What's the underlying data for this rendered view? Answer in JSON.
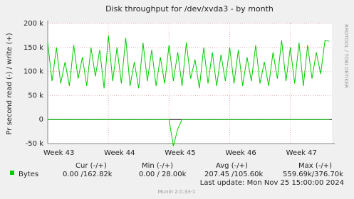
{
  "chart_data": {
    "type": "line",
    "title": "Disk throughput for /dev/xvda3 - by month",
    "y_label": "Pr second read (-) / write (+)",
    "side_text": "RRDTOOL / TOBI OETIKER",
    "x": [
      0,
      0.5,
      1,
      1.5,
      2,
      2.5,
      3,
      3.5,
      4,
      4.5,
      5,
      5.5,
      6,
      6.5,
      7,
      7.5,
      8,
      8.5,
      9,
      9.5,
      10,
      10.5,
      11,
      11.5,
      12,
      12.5,
      13,
      13.5,
      14,
      14.5,
      15,
      15.5,
      16,
      16.5,
      17,
      17.5,
      18,
      18.5,
      19,
      19.5,
      20,
      20.5,
      21,
      21.5,
      22,
      22.5,
      23,
      23.5,
      24,
      24.5,
      25,
      25.5,
      26,
      26.5,
      27,
      27.5,
      28,
      28.5,
      29,
      29.5,
      30,
      30.5,
      31,
      31.5,
      32,
      32.5
    ],
    "series": [
      {
        "name": "Bytes",
        "color": "#00cc00",
        "values": [
          160000,
          80000,
          150000,
          75000,
          120000,
          70000,
          155000,
          85000,
          130000,
          70000,
          150000,
          90000,
          145000,
          65000,
          175000,
          80000,
          150000,
          75000,
          170000,
          70000,
          120000,
          65000,
          160000,
          80000,
          145000,
          70000,
          130000,
          75000,
          155000,
          80000,
          140000,
          70000,
          160000,
          85000,
          125000,
          65000,
          150000,
          75000,
          140000,
          70000,
          135000,
          80000,
          150000,
          75000,
          145000,
          70000,
          130000,
          80000,
          155000,
          75000,
          120000,
          70000,
          140000,
          85000,
          165000,
          80000,
          150000,
          75000,
          160000,
          70000,
          155000,
          85000,
          140000,
          95000,
          165000,
          162820
        ]
      },
      {
        "color": "#00cc00",
        "values": [
          0,
          0,
          0,
          0,
          0,
          0,
          0,
          0,
          0,
          0,
          0,
          0,
          0,
          0,
          0,
          0,
          0,
          0,
          0,
          0,
          0,
          0,
          0,
          0,
          0,
          0,
          0,
          0,
          0,
          -55000,
          -20000,
          0,
          0,
          0,
          0,
          0,
          0,
          0,
          0,
          0,
          0,
          0,
          0,
          0,
          0,
          0,
          0,
          0,
          0,
          0,
          0,
          0,
          0,
          0,
          0,
          0,
          0,
          0,
          0,
          0,
          0,
          0,
          0,
          0,
          0,
          0
        ]
      }
    ],
    "xlim": [
      0,
      32.8
    ],
    "xticks": [
      {
        "value": 0,
        "label": "Week 43"
      },
      {
        "value": 7,
        "label": "Week 44"
      },
      {
        "value": 14,
        "label": "Week 45"
      },
      {
        "value": 21,
        "label": "Week 46"
      },
      {
        "value": 28,
        "label": "Week 47"
      }
    ],
    "ylim": [
      -50000,
      200000
    ],
    "yticks": [
      {
        "value": -50000,
        "label": "-50 k"
      },
      0,
      {
        "value": 50000,
        "label": "50 k"
      },
      {
        "value": 100000,
        "label": "100 k"
      },
      {
        "value": 150000,
        "label": "150 k"
      },
      {
        "value": 200000,
        "label": "200 k"
      }
    ],
    "grid": true,
    "stats": {
      "headers": [
        "Cur (-/+)",
        "Min (-/+)",
        "Avg (-/+)",
        "Max (-/+)"
      ],
      "row": [
        "0.00 /162.82k",
        "0.00 / 28.00k",
        "207.45 /105.60k",
        "559.69k/376.70k"
      ]
    },
    "last_update": "Last update: Mon Nov 25 15:00:00 2024",
    "footer": "Munin 2.0.33-1"
  }
}
